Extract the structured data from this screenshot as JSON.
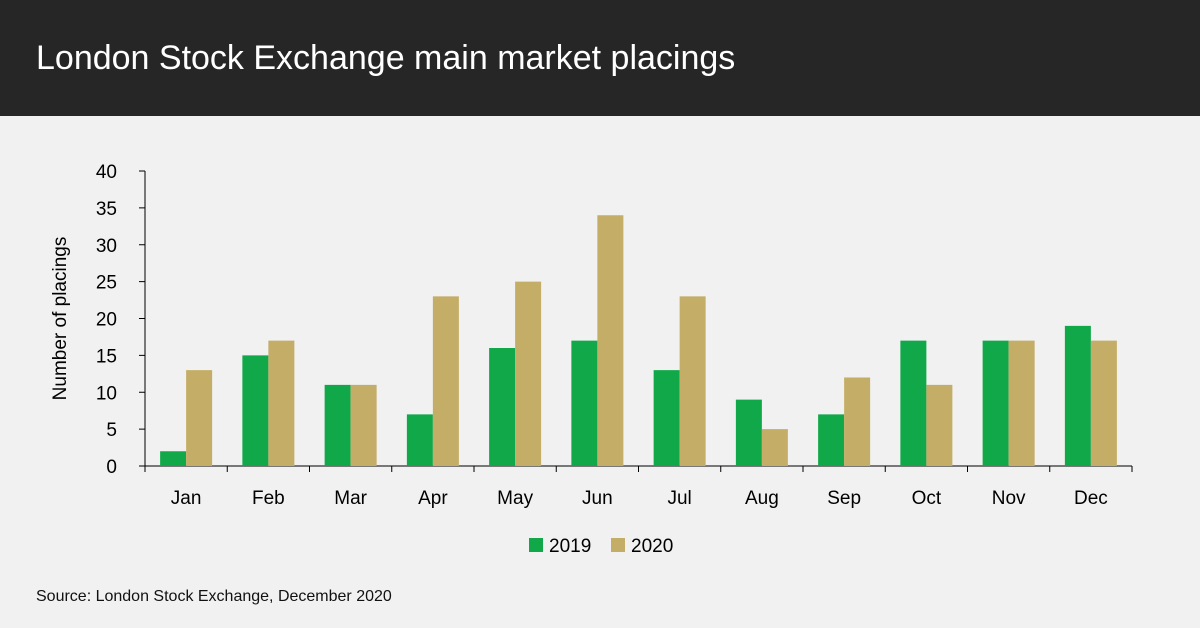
{
  "header": {
    "title": "London Stock Exchange main market placings"
  },
  "footer": {
    "source": "Source: London Stock Exchange, December 2020"
  },
  "colors": {
    "header_bg": "#262626",
    "background": "#f1f1f1",
    "series_2019": "#11a84a",
    "series_2020": "#c4ad66",
    "axis": "#000000"
  },
  "chart_data": {
    "type": "bar",
    "title": "",
    "xlabel": "",
    "ylabel": "Number of placings",
    "ylim": [
      0,
      40
    ],
    "yticks": [
      0,
      5,
      10,
      15,
      20,
      25,
      30,
      35,
      40
    ],
    "grid": false,
    "legend_position": "bottom-center",
    "categories": [
      "Jan",
      "Feb",
      "Mar",
      "Apr",
      "May",
      "Jun",
      "Jul",
      "Aug",
      "Sep",
      "Oct",
      "Nov",
      "Dec"
    ],
    "series": [
      {
        "name": "2019",
        "color": "#11a84a",
        "values": [
          2,
          15,
          11,
          7,
          16,
          17,
          13,
          9,
          7,
          17,
          17,
          19
        ]
      },
      {
        "name": "2020",
        "color": "#c4ad66",
        "values": [
          13,
          17,
          11,
          23,
          25,
          34,
          23,
          5,
          12,
          11,
          17,
          17
        ]
      }
    ]
  }
}
